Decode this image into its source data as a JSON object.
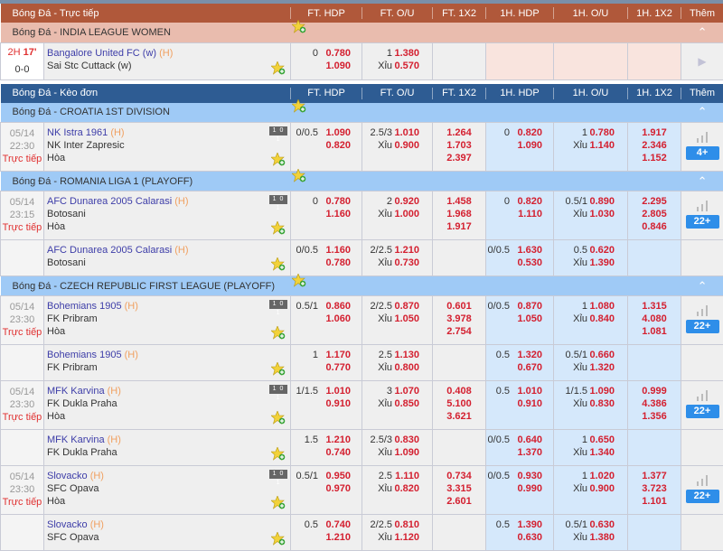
{
  "colors": {
    "live_header": "#b0583a",
    "live_league": "#e9bcae",
    "pre_header": "#2e5c93",
    "pre_league": "#9fcaf6",
    "odds": "#d42030",
    "team_home": "#3d3da8",
    "status_live": "#e03030",
    "more_button": "#2e8ee9"
  },
  "sections": [
    {
      "kind": "live",
      "title": "Bóng Đá - Trực tiếp",
      "columns": [
        "FT. HDP",
        "FT. O/U",
        "FT. 1X2",
        "1H. HDP",
        "1H. O/U",
        "1H. 1X2",
        "Thêm"
      ],
      "leagues": [
        {
          "name": "Bóng Đá - INDIA LEAGUE WOMEN",
          "collapse_icon": "chevron-up-icon",
          "matches": [
            {
              "live": {
                "period": "2H",
                "minute": "17'",
                "score": "0-0"
              },
              "home": "Bangalore United FC (w)",
              "home_tag": "(H)",
              "away": "Sai Stc Cuttack (w)",
              "ft_hdp": {
                "line": "0",
                "home": "0.780",
                "away": "1.090"
              },
              "ft_ou": {
                "line": "1",
                "over": "1.380",
                "under_label": "Xỉu",
                "under": "0.570"
              },
              "more_icon": "play-icon"
            }
          ]
        }
      ]
    },
    {
      "kind": "pre",
      "title": "Bóng Đá - Kèo đơn",
      "columns": [
        "FT. HDP",
        "FT. O/U",
        "FT. 1X2",
        "1H. HDP",
        "1H. O/U",
        "1H. 1X2",
        "Thêm"
      ],
      "leagues": [
        {
          "name": "Bóng Đá - CROATIA 1ST DIVISION",
          "collapse_icon": "chevron-up-icon",
          "matches": [
            {
              "time": {
                "date": "05/14",
                "clock": "22:30",
                "status": "Trực tiếp"
              },
              "home": "NK Istra 1961",
              "home_tag": "(H)",
              "away": "NK Inter Zapresic",
              "draw": "Hòa",
              "ft_hdp": {
                "line": "0/0.5",
                "home": "1.090",
                "away": "0.820"
              },
              "ft_ou": {
                "line": "2.5/3",
                "over": "1.010",
                "under_label": "Xỉu",
                "under": "0.900"
              },
              "ft_1x2": [
                "1.264",
                "1.703",
                "2.397"
              ],
              "h1_hdp": {
                "line": "0",
                "home": "0.820",
                "away": "1.090"
              },
              "h1_ou": {
                "line": "1",
                "over": "0.780",
                "under_label": "Xỉu",
                "under": "1.140"
              },
              "h1_1x2": [
                "1.917",
                "2.346",
                "1.152"
              ],
              "more": "4+"
            }
          ]
        },
        {
          "name": "Bóng Đá - ROMANIA LIGA 1 (PLAYOFF)",
          "collapse_icon": "chevron-up-icon",
          "matches": [
            {
              "time": {
                "date": "05/14",
                "clock": "23:15",
                "status": "Trực tiếp"
              },
              "home": "AFC Dunarea 2005 Calarasi",
              "home_tag": "(H)",
              "away": "Botosani",
              "draw": "Hòa",
              "ft_hdp": {
                "line": "0",
                "home": "0.780",
                "away": "1.160"
              },
              "ft_ou": {
                "line": "2",
                "over": "0.920",
                "under_label": "Xỉu",
                "under": "1.000"
              },
              "ft_1x2": [
                "1.458",
                "1.968",
                "1.917"
              ],
              "h1_hdp": {
                "line": "0",
                "home": "0.820",
                "away": "1.110"
              },
              "h1_ou": {
                "line": "0.5/1",
                "over": "0.890",
                "under_label": "Xỉu",
                "under": "1.030"
              },
              "h1_1x2": [
                "2.295",
                "2.805",
                "0.846"
              ],
              "more": "22+"
            },
            {
              "home": "AFC Dunarea 2005 Calarasi",
              "home_tag": "(H)",
              "away": "Botosani",
              "ft_hdp": {
                "line": "0/0.5",
                "home": "1.160",
                "away": "0.780"
              },
              "ft_ou": {
                "line": "2/2.5",
                "over": "1.210",
                "under_label": "Xỉu",
                "under": "0.730"
              },
              "h1_hdp": {
                "line": "0/0.5",
                "home": "1.630",
                "away": "0.530"
              },
              "h1_ou": {
                "line": "0.5",
                "over": "0.620",
                "under_label": "Xỉu",
                "under": "1.390"
              }
            }
          ]
        },
        {
          "name": "Bóng Đá - CZECH REPUBLIC FIRST LEAGUE (PLAYOFF)",
          "collapse_icon": "chevron-up-icon",
          "matches": [
            {
              "time": {
                "date": "05/14",
                "clock": "23:30",
                "status": "Trực tiếp"
              },
              "home": "Bohemians 1905",
              "home_tag": "(H)",
              "away": "FK Pribram",
              "draw": "Hòa",
              "ft_hdp": {
                "line": "0.5/1",
                "home": "0.860",
                "away": "1.060"
              },
              "ft_ou": {
                "line": "2/2.5",
                "over": "0.870",
                "under_label": "Xỉu",
                "under": "1.050"
              },
              "ft_1x2": [
                "0.601",
                "3.978",
                "2.754"
              ],
              "h1_hdp": {
                "line": "0/0.5",
                "home": "0.870",
                "away": "1.050"
              },
              "h1_ou": {
                "line": "1",
                "over": "1.080",
                "under_label": "Xỉu",
                "under": "0.840"
              },
              "h1_1x2": [
                "1.315",
                "4.080",
                "1.081"
              ],
              "more": "22+"
            },
            {
              "home": "Bohemians 1905",
              "home_tag": "(H)",
              "away": "FK Pribram",
              "ft_hdp": {
                "line": "1",
                "home": "1.170",
                "away": "0.770"
              },
              "ft_ou": {
                "line": "2.5",
                "over": "1.130",
                "under_label": "Xỉu",
                "under": "0.800"
              },
              "h1_hdp": {
                "line": "0.5",
                "home": "1.320",
                "away": "0.670"
              },
              "h1_ou": {
                "line": "0.5/1",
                "over": "0.660",
                "under_label": "Xỉu",
                "under": "1.320"
              }
            },
            {
              "time": {
                "date": "05/14",
                "clock": "23:30",
                "status": "Trực tiếp"
              },
              "home": "MFK Karvina",
              "home_tag": "(H)",
              "away": "FK Dukla Praha",
              "draw": "Hòa",
              "ft_hdp": {
                "line": "1/1.5",
                "home": "1.010",
                "away": "0.910"
              },
              "ft_ou": {
                "line": "3",
                "over": "1.070",
                "under_label": "Xỉu",
                "under": "0.850"
              },
              "ft_1x2": [
                "0.408",
                "5.100",
                "3.621"
              ],
              "h1_hdp": {
                "line": "0.5",
                "home": "1.010",
                "away": "0.910"
              },
              "h1_ou": {
                "line": "1/1.5",
                "over": "1.090",
                "under_label": "Xỉu",
                "under": "0.830"
              },
              "h1_1x2": [
                "0.999",
                "4.386",
                "1.356"
              ],
              "more": "22+"
            },
            {
              "home": "MFK Karvina",
              "home_tag": "(H)",
              "away": "FK Dukla Praha",
              "ft_hdp": {
                "line": "1.5",
                "home": "1.210",
                "away": "0.740"
              },
              "ft_ou": {
                "line": "2.5/3",
                "over": "0.830",
                "under_label": "Xỉu",
                "under": "1.090"
              },
              "h1_hdp": {
                "line": "0/0.5",
                "home": "0.640",
                "away": "1.370"
              },
              "h1_ou": {
                "line": "1",
                "over": "0.650",
                "under_label": "Xỉu",
                "under": "1.340"
              }
            },
            {
              "time": {
                "date": "05/14",
                "clock": "23:30",
                "status": "Trực tiếp"
              },
              "home": "Slovacko",
              "home_tag": "(H)",
              "away": "SFC Opava",
              "draw": "Hòa",
              "ft_hdp": {
                "line": "0.5/1",
                "home": "0.950",
                "away": "0.970"
              },
              "ft_ou": {
                "line": "2.5",
                "over": "1.110",
                "under_label": "Xỉu",
                "under": "0.820"
              },
              "ft_1x2": [
                "0.734",
                "3.315",
                "2.601"
              ],
              "h1_hdp": {
                "line": "0/0.5",
                "home": "0.930",
                "away": "0.990"
              },
              "h1_ou": {
                "line": "1",
                "over": "1.020",
                "under_label": "Xỉu",
                "under": "0.900"
              },
              "h1_1x2": [
                "1.377",
                "3.723",
                "1.101"
              ],
              "more": "22+"
            },
            {
              "home": "Slovacko",
              "home_tag": "(H)",
              "away": "SFC Opava",
              "ft_hdp": {
                "line": "0.5",
                "home": "0.740",
                "away": "1.210"
              },
              "ft_ou": {
                "line": "2/2.5",
                "over": "0.810",
                "under_label": "Xỉu",
                "under": "1.120"
              },
              "h1_hdp": {
                "line": "0.5",
                "home": "1.390",
                "away": "0.630"
              },
              "h1_ou": {
                "line": "0.5/1",
                "over": "0.630",
                "under_label": "Xỉu",
                "under": "1.380"
              }
            }
          ]
        }
      ]
    }
  ]
}
